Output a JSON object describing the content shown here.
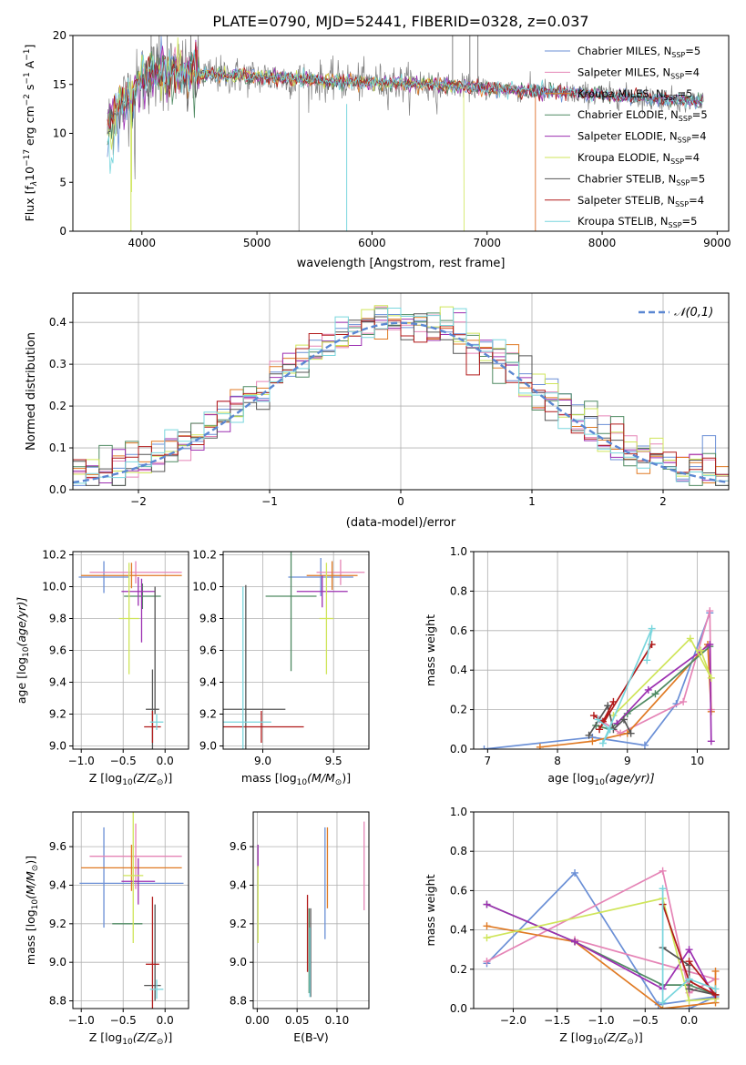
{
  "figure_title": "PLATE=0790, MJD=52441, FIBERID=0328, z=0.037",
  "colors": {
    "chabrier_miles": "#6a8fd6",
    "salpeter_miles": "#e584b6",
    "kroupa_miles": "#e07a23",
    "chabrier_elodie": "#4f8a62",
    "salpeter_elodie": "#9c2fb1",
    "kroupa_elodie": "#cfe55a",
    "chabrier_stelib": "#555555",
    "salpeter_stelib": "#b11a1a",
    "kroupa_stelib": "#79d6dd",
    "spectrum": "#808080",
    "normal": "#5b87d2",
    "grid": "#b0b0b0"
  },
  "chart_data": [
    {
      "id": "spectrum",
      "type": "line",
      "title": "PLATE=0790, MJD=52441, FIBERID=0328, z=0.037",
      "xlabel": "wavelength [Angstrom, rest frame]",
      "ylabel": "Flux [f",
      "ylabel_sub": "λ",
      "ylabel_mid": "10",
      "ylabel_sup1": "−17",
      "ylabel_rest": " erg cm",
      "ylabel_sup2": "−2",
      "ylabel_rest2": " s",
      "ylabel_sup3": "−1",
      "ylabel_rest3": " A",
      "ylabel_sup4": "−1",
      "ylabel_end": "]",
      "xlim": [
        3400,
        9100
      ],
      "ylim": [
        0,
        20
      ],
      "xticks": [
        4000,
        5000,
        6000,
        7000,
        8000,
        9000
      ],
      "yticks": [
        0,
        5,
        10,
        15,
        20
      ],
      "grid": false,
      "legend_position": "top-right",
      "observed_range": [
        3700,
        8880
      ],
      "model_edges": [
        {
          "model": "kroupa_miles",
          "max_wavelength": 7420
        },
        {
          "model": "salpeter_miles",
          "max_wavelength": 7420
        },
        {
          "model": "kroupa_elodie",
          "max_wavelength": 6800
        }
      ],
      "continuum": [
        {
          "x": 3700,
          "y": 10.5
        },
        {
          "x": 3800,
          "y": 13.0
        },
        {
          "x": 3900,
          "y": 13.8
        },
        {
          "x": 4000,
          "y": 15.5
        },
        {
          "x": 4100,
          "y": 16.0
        },
        {
          "x": 4300,
          "y": 16.4
        },
        {
          "x": 4500,
          "y": 16.0
        },
        {
          "x": 5000,
          "y": 15.8
        },
        {
          "x": 5500,
          "y": 15.4
        },
        {
          "x": 6000,
          "y": 15.2
        },
        {
          "x": 6500,
          "y": 15.0
        },
        {
          "x": 7000,
          "y": 14.6
        },
        {
          "x": 7500,
          "y": 14.3
        },
        {
          "x": 8000,
          "y": 13.9
        },
        {
          "x": 8500,
          "y": 13.6
        },
        {
          "x": 8880,
          "y": 13.2
        }
      ],
      "legend": [
        {
          "label": "Chabrier MILES, N",
          "sub": "SSP",
          "value": "=5",
          "color_key": "chabrier_miles"
        },
        {
          "label": "Salpeter MILES, N",
          "sub": "SSP",
          "value": "=4",
          "color_key": "salpeter_miles"
        },
        {
          "label": "Kroupa MILES, N",
          "sub": "SSP",
          "value": "=5",
          "color_key": "kroupa_miles"
        },
        {
          "label": "Chabrier ELODIE, N",
          "sub": "SSP",
          "value": "=5",
          "color_key": "chabrier_elodie"
        },
        {
          "label": "Salpeter ELODIE, N",
          "sub": "SSP",
          "value": "=4",
          "color_key": "salpeter_elodie"
        },
        {
          "label": "Kroupa ELODIE, N",
          "sub": "SSP",
          "value": "=4",
          "color_key": "kroupa_elodie"
        },
        {
          "label": "Chabrier STELIB, N",
          "sub": "SSP",
          "value": "=5",
          "color_key": "chabrier_stelib"
        },
        {
          "label": "Salpeter STELIB, N",
          "sub": "SSP",
          "value": "=4",
          "color_key": "salpeter_stelib"
        },
        {
          "label": "Kroupa STELIB, N",
          "sub": "SSP",
          "value": "=5",
          "color_key": "kroupa_stelib"
        }
      ]
    },
    {
      "id": "residuals",
      "type": "histogram",
      "xlabel": "(data-model)/error",
      "ylabel": "Normed distribution",
      "xlim": [
        -2.5,
        2.5
      ],
      "ylim": [
        0,
        0.47
      ],
      "xticks": [
        -2,
        -1,
        0,
        1,
        2
      ],
      "yticks": [
        0.0,
        0.1,
        0.2,
        0.3,
        0.4
      ],
      "grid": true,
      "legend_position": "top-right",
      "bin_width": 0.1,
      "bin_start": -2.5,
      "bins": 50,
      "reference_curve": {
        "label": "𝒩(0,1)",
        "mu": 0,
        "sigma": 1,
        "color_key": "normal"
      },
      "series_models": [
        "chabrier_miles",
        "salpeter_miles",
        "kroupa_miles",
        "chabrier_elodie",
        "salpeter_elodie",
        "kroupa_elodie",
        "chabrier_stelib",
        "salpeter_stelib",
        "kroupa_stelib"
      ]
    },
    {
      "id": "z_age",
      "type": "scatter",
      "xlabel": "Z [log",
      "xlabel_sub": "10",
      "xlabel_rest": "(Z/Z",
      "xlabel_sun": "⊙",
      "xlabel_end": ")]",
      "ylabel": "age  [log",
      "ylabel_sub": "10",
      "ylabel_rest": "(age/yr)]",
      "xlim": [
        -1.1,
        0.28
      ],
      "ylim": [
        8.98,
        10.22
      ],
      "xticks": [
        -1.0,
        -0.5,
        0.0
      ],
      "yticks": [
        9.0,
        9.2,
        9.4,
        9.6,
        9.8,
        10.0,
        10.2
      ],
      "grid": true,
      "errorbars": [
        {
          "model": "chabrier_miles",
          "x": -0.73,
          "y": 10.06,
          "xerr": 0.3,
          "yerr": 0.1
        },
        {
          "model": "salpeter_miles",
          "x": -0.35,
          "y": 10.09,
          "xerr": 0.55,
          "yerr": 0.07
        },
        {
          "model": "kroupa_miles",
          "x": -0.4,
          "y": 10.07,
          "xerr": 0.6,
          "yerr": 0.08
        },
        {
          "model": "chabrier_elodie",
          "x": -0.27,
          "y": 9.94,
          "xerr": 0.22,
          "yerr": 0.08
        },
        {
          "model": "salpeter_elodie",
          "x": -0.32,
          "y": 9.97,
          "xerr": 0.2,
          "yerr": 0.09
        },
        {
          "model": "kroupa_elodie",
          "x": -0.43,
          "y": 9.8,
          "xerr": 0.12,
          "yerr": 0.35
        },
        {
          "model": "chabrier_stelib",
          "x": -0.15,
          "y": 9.23,
          "xerr": 0.08,
          "yerr": 0.25
        },
        {
          "model": "salpeter_stelib",
          "x": -0.15,
          "y": 9.12,
          "xerr": 0.1,
          "yerr": 0.1
        },
        {
          "model": "kroupa_stelib",
          "x": -0.1,
          "y": 9.15,
          "xerr": 0.08,
          "yerr": 0.05
        },
        {
          "model": "chabrier_stelib",
          "x": -0.12,
          "y": 9.6,
          "xerr": 0.0,
          "yerr": 0.4
        },
        {
          "model": "salpeter_elodie",
          "x": -0.28,
          "y": 9.85,
          "xerr": 0.0,
          "yerr": 0.2
        }
      ]
    },
    {
      "id": "mass_age",
      "type": "scatter",
      "xlabel": "mass [log",
      "xlabel_sub": "10",
      "xlabel_rest": "(M/M",
      "xlabel_sun": "⊙",
      "xlabel_end": ")]",
      "xlim": [
        8.72,
        9.75
      ],
      "ylim": [
        8.98,
        10.22
      ],
      "xticks": [
        9.0,
        9.5
      ],
      "yticks": [
        9.0,
        9.2,
        9.4,
        9.6,
        9.8,
        10.0,
        10.2
      ],
      "grid": true,
      "errorbars": [
        {
          "model": "chabrier_miles",
          "x": 9.41,
          "y": 10.06,
          "xerr": 0.23,
          "yerr": 0.12
        },
        {
          "model": "salpeter_miles",
          "x": 9.55,
          "y": 10.09,
          "xerr": 0.17,
          "yerr": 0.08
        },
        {
          "model": "kroupa_miles",
          "x": 9.49,
          "y": 10.07,
          "xerr": 0.18,
          "yerr": 0.09
        },
        {
          "model": "chabrier_elodie",
          "x": 9.2,
          "y": 9.94,
          "xerr": 0.18,
          "yerr": 0.47
        },
        {
          "model": "salpeter_elodie",
          "x": 9.42,
          "y": 9.97,
          "xerr": 0.18,
          "yerr": 0.1
        },
        {
          "model": "kroupa_elodie",
          "x": 9.45,
          "y": 9.8,
          "xerr": 0.05,
          "yerr": 0.35
        },
        {
          "model": "chabrier_stelib",
          "x": 8.88,
          "y": 9.23,
          "xerr": 0.28,
          "yerr": 0.78
        },
        {
          "model": "salpeter_stelib",
          "x": 8.99,
          "y": 9.12,
          "xerr": 0.3,
          "yerr": 0.1
        },
        {
          "model": "kroupa_stelib",
          "x": 8.86,
          "y": 9.15,
          "xerr": 0.2,
          "yerr": 0.85
        }
      ]
    },
    {
      "id": "age_weight",
      "type": "line",
      "xlabel": "age  [log",
      "xlabel_sub": "10",
      "xlabel_rest": "(age/yr)]",
      "ylabel": "mass weight",
      "xlim": [
        6.8,
        10.45
      ],
      "ylim": [
        0,
        1
      ],
      "xticks": [
        7,
        8,
        9,
        10
      ],
      "yticks": [
        0.0,
        0.2,
        0.4,
        0.6,
        0.8,
        1.0
      ],
      "grid": true,
      "series": [
        {
          "model": "chabrier_miles",
          "x": [
            6.95,
            8.5,
            9.25,
            9.7,
            10.18
          ],
          "y": [
            0.0,
            0.06,
            0.02,
            0.23,
            0.69
          ]
        },
        {
          "model": "salpeter_miles",
          "x": [
            8.6,
            8.9,
            9.8,
            10.18,
            10.2
          ],
          "y": [
            0.15,
            0.08,
            0.24,
            0.7,
            0.2
          ]
        },
        {
          "model": "kroupa_miles",
          "x": [
            7.75,
            8.5,
            9.0,
            10.15,
            10.2
          ],
          "y": [
            0.01,
            0.04,
            0.08,
            0.53,
            0.19
          ]
        },
        {
          "model": "chabrier_elodie",
          "x": [
            8.55,
            8.75,
            9.0,
            9.4,
            10.18
          ],
          "y": [
            0.12,
            0.1,
            0.18,
            0.28,
            0.52
          ]
        },
        {
          "model": "salpeter_elodie",
          "x": [
            8.85,
            9.3,
            10.18,
            10.2
          ],
          "y": [
            0.13,
            0.3,
            0.53,
            0.04
          ]
        },
        {
          "model": "kroupa_elodie",
          "x": [
            8.8,
            9.9,
            10.2,
            10.05
          ],
          "y": [
            0.17,
            0.56,
            0.36,
            0.5
          ]
        },
        {
          "model": "chabrier_stelib",
          "x": [
            8.45,
            8.72,
            8.8,
            8.95,
            9.05
          ],
          "y": [
            0.07,
            0.22,
            0.1,
            0.15,
            0.08
          ]
        },
        {
          "model": "salpeter_stelib",
          "x": [
            8.52,
            8.65,
            8.8,
            8.6,
            9.35
          ],
          "y": [
            0.17,
            0.14,
            0.24,
            0.1,
            0.53
          ]
        },
        {
          "model": "kroupa_stelib",
          "x": [
            8.58,
            8.75,
            8.65,
            9.35,
            9.28
          ],
          "y": [
            0.15,
            0.1,
            0.03,
            0.61,
            0.45
          ]
        }
      ]
    },
    {
      "id": "z_mass",
      "type": "scatter",
      "xlabel": "Z [log",
      "xlabel_sub": "10",
      "xlabel_rest": "(Z/Z",
      "xlabel_sun": "⊙",
      "xlabel_end": ")]",
      "ylabel": "mass [log",
      "ylabel_sub": "10",
      "ylabel_rest": "(M/M",
      "ylabel_sun": "⊙",
      "ylabel_end": ")]",
      "xlim": [
        -1.1,
        0.28
      ],
      "ylim": [
        8.76,
        9.78
      ],
      "xticks": [
        -1.0,
        -0.5,
        0.0
      ],
      "yticks": [
        8.8,
        9.0,
        9.2,
        9.4,
        9.6
      ],
      "grid": true,
      "errorbars": [
        {
          "model": "chabrier_miles",
          "x": -0.4,
          "y": 9.41,
          "xerr": 0.62,
          "yerr": 0.0
        },
        {
          "model": "chabrier_miles",
          "x": -0.73,
          "y": 9.44,
          "xerr": 0.0,
          "yerr": 0.26
        },
        {
          "model": "salpeter_miles",
          "x": -0.35,
          "y": 9.55,
          "xerr": 0.55,
          "yerr": 0.17
        },
        {
          "model": "kroupa_miles",
          "x": -0.4,
          "y": 9.49,
          "xerr": 0.6,
          "yerr": 0.12
        },
        {
          "model": "chabrier_elodie",
          "x": -0.45,
          "y": 9.2,
          "xerr": 0.18,
          "yerr": 0.0
        },
        {
          "model": "salpeter_elodie",
          "x": -0.32,
          "y": 9.42,
          "xerr": 0.2,
          "yerr": 0.12
        },
        {
          "model": "kroupa_elodie",
          "x": -0.38,
          "y": 9.45,
          "xerr": 0.12,
          "yerr": 0.35
        },
        {
          "model": "chabrier_stelib",
          "x": -0.15,
          "y": 8.88,
          "xerr": 0.1,
          "yerr": 0.0
        },
        {
          "model": "chabrier_stelib",
          "x": -0.12,
          "y": 9.05,
          "xerr": 0.0,
          "yerr": 0.25
        },
        {
          "model": "salpeter_stelib",
          "x": -0.15,
          "y": 8.99,
          "xerr": 0.08,
          "yerr": 0.35
        },
        {
          "model": "kroupa_stelib",
          "x": -0.1,
          "y": 8.86,
          "xerr": 0.08,
          "yerr": 0.05
        }
      ]
    },
    {
      "id": "ebv_mass",
      "type": "scatter",
      "xlabel": "E(B-V)",
      "xlim": [
        -0.005,
        0.14
      ],
      "ylim": [
        8.76,
        9.78
      ],
      "xticks": [
        0.0,
        0.05,
        0.1
      ],
      "yticks": [
        8.8,
        9.0,
        9.2,
        9.4,
        9.6
      ],
      "grid": true,
      "errorbars": [
        {
          "model": "chabrier_miles",
          "x": 0.085,
          "y": 9.41,
          "xerr": 0,
          "yerr": 0.29
        },
        {
          "model": "salpeter_miles",
          "x": 0.134,
          "y": 9.5,
          "xerr": 0,
          "yerr": 0.23
        },
        {
          "model": "kroupa_miles",
          "x": 0.088,
          "y": 9.49,
          "xerr": 0,
          "yerr": 0.21
        },
        {
          "model": "chabrier_elodie",
          "x": 0.065,
          "y": 9.06,
          "xerr": 0,
          "yerr": 0.22
        },
        {
          "model": "salpeter_elodie",
          "x": 0.001,
          "y": 9.55,
          "xerr": 0,
          "yerr": 0.06
        },
        {
          "model": "kroupa_elodie",
          "x": 0.001,
          "y": 9.3,
          "xerr": 0,
          "yerr": 0.2
        },
        {
          "model": "chabrier_stelib",
          "x": 0.067,
          "y": 9.05,
          "xerr": 0,
          "yerr": 0.23
        },
        {
          "model": "salpeter_stelib",
          "x": 0.063,
          "y": 9.15,
          "xerr": 0,
          "yerr": 0.2
        },
        {
          "model": "kroupa_stelib",
          "x": 0.066,
          "y": 9.0,
          "xerr": 0,
          "yerr": 0.18
        }
      ]
    },
    {
      "id": "z_weight",
      "type": "line",
      "xlabel": "Z [log",
      "xlabel_sub": "10",
      "xlabel_rest": "(Z/Z",
      "xlabel_sun": "⊙",
      "xlabel_end": ")]",
      "ylabel": "mass weight",
      "xlim": [
        -2.45,
        0.45
      ],
      "ylim": [
        0,
        1
      ],
      "xticks": [
        -2.0,
        -1.5,
        -1.0,
        -0.5,
        0.0
      ],
      "yticks": [
        0.0,
        0.2,
        0.4,
        0.6,
        0.8,
        1.0
      ],
      "grid": true,
      "series": [
        {
          "model": "chabrier_miles",
          "x": [
            -2.3,
            -1.3,
            -0.35,
            0.3,
            0.0
          ],
          "y": [
            0.23,
            0.69,
            0.02,
            0.06,
            0.0
          ]
        },
        {
          "model": "salpeter_miles",
          "x": [
            -2.3,
            -0.3,
            0.0,
            0.3,
            -1.3
          ],
          "y": [
            0.24,
            0.7,
            0.08,
            0.15,
            0.35
          ]
        },
        {
          "model": "kroupa_miles",
          "x": [
            -2.3,
            -1.3,
            -0.3,
            0.3,
            0.3
          ],
          "y": [
            0.42,
            0.34,
            0.0,
            0.03,
            0.19
          ]
        },
        {
          "model": "chabrier_elodie",
          "x": [
            -2.3,
            -1.3,
            -0.3,
            0.0,
            0.3
          ],
          "y": [
            0.53,
            0.34,
            0.12,
            0.12,
            0.07
          ]
        },
        {
          "model": "salpeter_elodie",
          "x": [
            -2.3,
            -1.3,
            -0.3,
            0.0,
            0.3
          ],
          "y": [
            0.53,
            0.34,
            0.1,
            0.3,
            0.05
          ]
        },
        {
          "model": "kroupa_elodie",
          "x": [
            -2.3,
            -0.3,
            0.0,
            0.3
          ],
          "y": [
            0.36,
            0.56,
            0.04,
            0.05
          ]
        },
        {
          "model": "chabrier_stelib",
          "x": [
            -0.3,
            0.0,
            0.0,
            0.3
          ],
          "y": [
            0.31,
            0.22,
            0.1,
            0.07
          ]
        },
        {
          "model": "salpeter_stelib",
          "x": [
            -0.3,
            0.0,
            0.3,
            0.0
          ],
          "y": [
            0.53,
            0.14,
            0.07,
            0.24
          ]
        },
        {
          "model": "kroupa_stelib",
          "x": [
            -0.3,
            -0.3,
            0.0,
            0.3
          ],
          "y": [
            0.61,
            0.03,
            0.15,
            0.1
          ]
        }
      ]
    }
  ]
}
